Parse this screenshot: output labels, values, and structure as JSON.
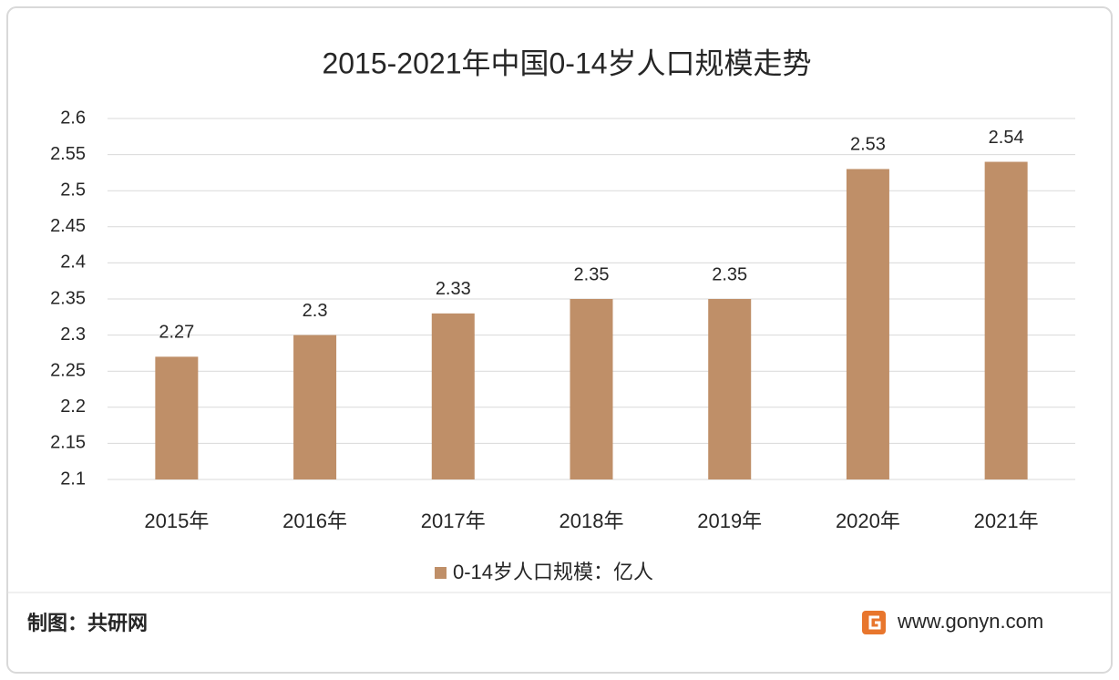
{
  "chart_data": {
    "type": "bar",
    "title": "2015-2021年中国0-14岁人口规模走势",
    "categories": [
      "2015年",
      "2016年",
      "2017年",
      "2018年",
      "2019年",
      "2020年",
      "2021年"
    ],
    "series": [
      {
        "name": "0-14岁人口规模：亿人",
        "color": "#bf8f68",
        "values": [
          2.27,
          2.3,
          2.33,
          2.35,
          2.35,
          2.53,
          2.54
        ]
      }
    ],
    "ylim": [
      2.1,
      2.6
    ],
    "yticks": [
      2.1,
      2.15,
      2.2,
      2.25,
      2.3,
      2.35,
      2.4,
      2.45,
      2.5,
      2.55,
      2.6
    ],
    "grid": true,
    "legend": "bottom",
    "credit": "制图：共研网",
    "website": "www.gonyn.com"
  }
}
